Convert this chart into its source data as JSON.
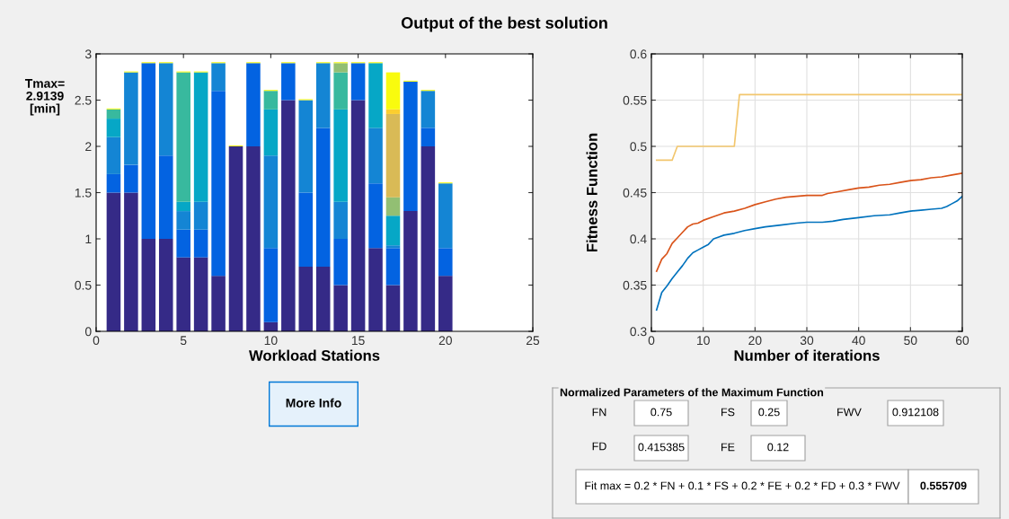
{
  "chart_data": [
    {
      "type": "bar",
      "title": "Output of the best solution",
      "xlabel": "Workload Stations",
      "stacked": true,
      "annotations": [
        "Tmax=\n2.9139\n[min]",
        "More Info"
      ],
      "x": [
        1,
        2,
        3,
        4,
        5,
        6,
        7,
        8,
        9,
        10,
        11,
        12,
        13,
        14,
        15,
        16,
        17,
        18,
        19,
        20
      ],
      "xlim": [
        0,
        25
      ],
      "xticks": [
        0,
        5,
        10,
        15,
        20,
        25
      ],
      "ylim": [
        0,
        3
      ],
      "yticks": [
        0,
        0.5,
        1,
        1.5,
        2,
        2.5,
        3
      ],
      "grid": false,
      "series": [
        {
          "color": "#352a87",
          "values": [
            1.5,
            1.5,
            1.0,
            1.0,
            0.8,
            0.8,
            0.6,
            2.0,
            2.0,
            0.1,
            2.5,
            0.7,
            0.7,
            0.5,
            2.5,
            0.9,
            0.5,
            1.3,
            2.0,
            0.6
          ]
        },
        {
          "color": "#0363e1",
          "values": [
            0.2,
            0.3,
            1.9,
            0.9,
            0.3,
            0.3,
            2.0,
            null,
            0.9,
            0.8,
            0.4,
            0.8,
            1.5,
            0.5,
            0.4,
            0.7,
            0.4,
            1.4,
            0.2,
            0.3
          ]
        },
        {
          "color": "#1485d4",
          "values": [
            0.4,
            1.0,
            null,
            1.0,
            0.2,
            0.3,
            0.3,
            null,
            null,
            1.0,
            null,
            1.0,
            0.7,
            0.4,
            null,
            0.6,
            0.03,
            null,
            0.4,
            0.7
          ]
        },
        {
          "color": "#06a7c6",
          "values": [
            0.2,
            null,
            null,
            null,
            0.1,
            1.4,
            null,
            null,
            null,
            0.5,
            null,
            null,
            null,
            1.0,
            null,
            0.7,
            0.32,
            null,
            null,
            null
          ]
        },
        {
          "color": "#38b99e",
          "values": [
            0.1,
            null,
            null,
            null,
            1.4,
            null,
            null,
            null,
            null,
            0.2,
            null,
            null,
            null,
            0.4,
            null,
            null,
            null,
            null,
            null,
            null
          ]
        },
        {
          "color": "#92bf73",
          "values": [
            null,
            null,
            null,
            null,
            null,
            null,
            null,
            null,
            null,
            null,
            null,
            null,
            null,
            0.1,
            null,
            null,
            0.2,
            null,
            null,
            null
          ]
        },
        {
          "color": "#d9ba56",
          "values": [
            null,
            null,
            null,
            null,
            null,
            null,
            null,
            null,
            null,
            null,
            null,
            null,
            null,
            null,
            null,
            null,
            0.9,
            null,
            null,
            null
          ]
        },
        {
          "color": "#fcce2e",
          "values": [
            null,
            null,
            null,
            null,
            null,
            null,
            null,
            null,
            null,
            null,
            null,
            null,
            null,
            null,
            null,
            null,
            0.05,
            null,
            null,
            null
          ]
        },
        {
          "color": "#f9fb0e",
          "values": [
            0.01,
            0.01,
            0.01,
            0.01,
            0.01,
            0.01,
            0.01,
            0.01,
            0.01,
            0.01,
            0.01,
            0.01,
            0.01,
            0.01,
            0.01,
            0.01,
            0.4,
            0.01,
            0.01,
            0.01
          ]
        }
      ]
    },
    {
      "type": "line",
      "xlabel": "Number of iterations",
      "ylabel": "Fitness Function",
      "grid": true,
      "xlim": [
        0,
        60
      ],
      "xticks": [
        0,
        10,
        20,
        30,
        40,
        50,
        60
      ],
      "ylim": [
        0.3,
        0.6
      ],
      "yticks": [
        0.3,
        0.35,
        0.4,
        0.45,
        0.5,
        0.55,
        0.6
      ],
      "series": [
        {
          "color": "#0072bd",
          "x": [
            1,
            2,
            3,
            4,
            5,
            6,
            7,
            8,
            9,
            10,
            11,
            12,
            13,
            14,
            16,
            18,
            20,
            22,
            25,
            28,
            30,
            33,
            35,
            37,
            40,
            43,
            46,
            48,
            50,
            52,
            54,
            56,
            57,
            58,
            59,
            60
          ],
          "values": [
            0.323,
            0.342,
            0.349,
            0.357,
            0.364,
            0.371,
            0.379,
            0.385,
            0.388,
            0.391,
            0.394,
            0.4,
            0.402,
            0.404,
            0.406,
            0.409,
            0.411,
            0.413,
            0.415,
            0.417,
            0.418,
            0.418,
            0.419,
            0.421,
            0.423,
            0.425,
            0.426,
            0.428,
            0.43,
            0.431,
            0.432,
            0.433,
            0.435,
            0.438,
            0.441,
            0.446
          ]
        },
        {
          "color": "#d95319",
          "x": [
            1,
            2,
            3,
            4,
            5,
            6,
            7,
            8,
            9,
            10,
            12,
            14,
            16,
            18,
            20,
            22,
            24,
            26,
            28,
            30,
            33,
            34,
            36,
            38,
            40,
            42,
            44,
            46,
            48,
            50,
            52,
            54,
            56,
            58,
            60
          ],
          "values": [
            0.365,
            0.378,
            0.384,
            0.395,
            0.401,
            0.407,
            0.413,
            0.416,
            0.417,
            0.42,
            0.424,
            0.428,
            0.43,
            0.433,
            0.437,
            0.44,
            0.443,
            0.445,
            0.446,
            0.447,
            0.447,
            0.449,
            0.451,
            0.453,
            0.455,
            0.456,
            0.458,
            0.459,
            0.461,
            0.463,
            0.464,
            0.466,
            0.467,
            0.469,
            0.471
          ]
        },
        {
          "color": "#f2c66d",
          "x": [
            1,
            4,
            5,
            16,
            17,
            60
          ],
          "values": [
            0.485,
            0.485,
            0.5,
            0.5,
            0.556,
            0.556
          ]
        }
      ]
    },
    {
      "type": "other",
      "title": "Normalized Parameters of the Maximum Function",
      "annotations": [
        "FN",
        "0.75",
        "FS",
        "0.25",
        "FWV",
        "0.912108",
        "FD",
        "0.415385",
        "FE",
        "0.12",
        "Fit max = 0.2 * FN + 0.1 * FS + 0.2 * FE + 0.2 * FD + 0.3 * FWV",
        "0.555709"
      ]
    }
  ]
}
